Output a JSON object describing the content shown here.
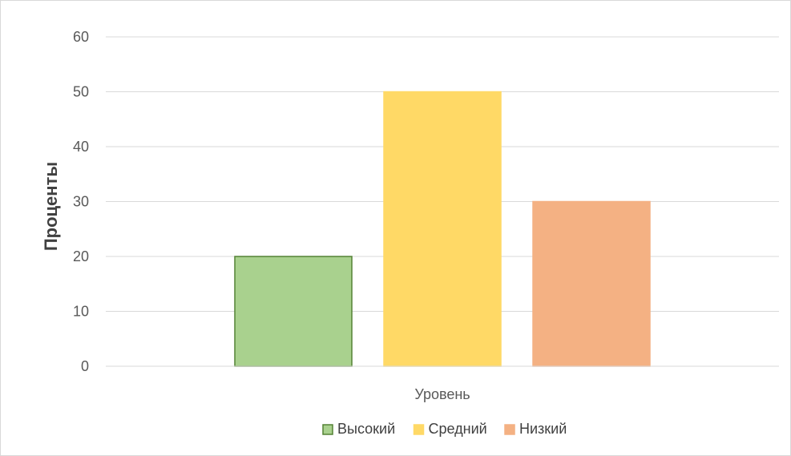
{
  "chart_data": {
    "type": "bar",
    "title": "",
    "xlabel": "Уровень",
    "ylabel": "Проценты",
    "categories": [
      "Уровень"
    ],
    "series": [
      {
        "name": "Высокий",
        "values": [
          20
        ],
        "color": "#a9d18e",
        "border": "#548235"
      },
      {
        "name": "Средний",
        "values": [
          50
        ],
        "color": "#ffd966",
        "border": "#ffd966"
      },
      {
        "name": "Низкий",
        "values": [
          30
        ],
        "color": "#f4b183",
        "border": "#f4b183"
      }
    ],
    "ylim": [
      0,
      60
    ],
    "yticks": [
      0,
      10,
      20,
      30,
      40,
      50,
      60
    ],
    "grid": true,
    "legend_position": "bottom"
  }
}
